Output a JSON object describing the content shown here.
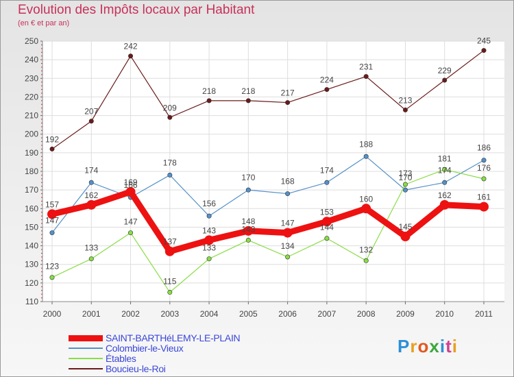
{
  "header": {
    "title": "Evolution des Impôts locaux par Habitant",
    "subtitle": "(en € et par an)"
  },
  "logo": {
    "text": "Proxiti"
  },
  "chart_data": {
    "type": "line",
    "title": "Evolution des Impôts locaux par Habitant",
    "subtitle": "(en € et par an)",
    "xlabel": "",
    "ylabel": "",
    "x": [
      "2000",
      "2001",
      "2002",
      "2003",
      "2004",
      "2005",
      "2006",
      "2007",
      "2008",
      "2009",
      "2010",
      "2011"
    ],
    "ylim": [
      110,
      250
    ],
    "yticks": [
      110,
      120,
      130,
      140,
      150,
      160,
      170,
      180,
      190,
      200,
      210,
      220,
      230,
      240,
      250
    ],
    "grid": true,
    "legend_position": "bottom-left",
    "series": [
      {
        "name": "SAINT-BARTHéLEMY-LE-PLAIN",
        "color": "#ee1111",
        "values": [
          157,
          162,
          169,
          137,
          143,
          148,
          147,
          153,
          160,
          145,
          162,
          161
        ]
      },
      {
        "name": "Colombier-le-Vieux",
        "color": "#5590c8",
        "values": [
          147,
          174,
          166,
          178,
          156,
          170,
          168,
          174,
          188,
          170,
          174,
          186
        ]
      },
      {
        "name": "Étables",
        "color": "#88dd44",
        "values": [
          123,
          133,
          147,
          115,
          133,
          143,
          134,
          144,
          132,
          173,
          181,
          176
        ]
      },
      {
        "name": "Boucieu-le-Roi",
        "color": "#6a1a1a",
        "values": [
          192,
          207,
          242,
          209,
          218,
          218,
          217,
          224,
          231,
          213,
          229,
          245
        ]
      }
    ]
  }
}
